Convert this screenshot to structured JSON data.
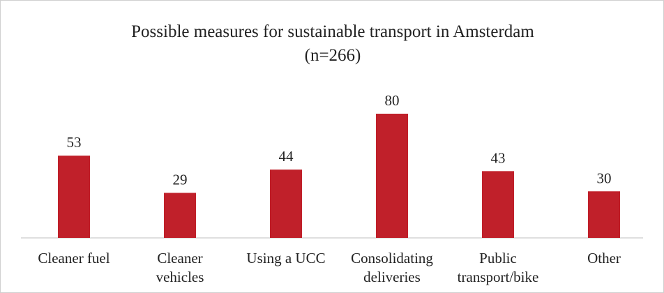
{
  "chart_data": {
    "type": "bar",
    "title": "Possible measures for sustainable transport in Amsterdam",
    "subtitle": "(n=266)",
    "categories": [
      "Cleaner fuel",
      "Cleaner\nvehicles",
      "Using a UCC",
      "Consolidating\ndeliveries",
      "Public\ntransport/bike",
      "Other"
    ],
    "values": [
      53,
      29,
      44,
      80,
      43,
      30
    ],
    "color": "#c0202a"
  }
}
